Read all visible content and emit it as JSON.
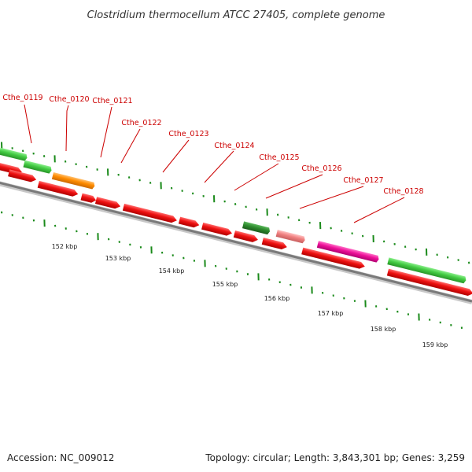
{
  "title": "Clostridium thermocellum ATCC 27405, complete genome",
  "footer": {
    "accession": "Accession: NC_009012",
    "summary": "Topology: circular; Length: 3,843,301 bp; Genes: 3,259"
  },
  "colors": {
    "gene_label": "#cc0000",
    "backbone": "#808080",
    "cds_red": "#ee1111",
    "cds_green": "#44cc44",
    "cds_orange": "#ff8c00",
    "cds_dark_green": "#2e8b2e",
    "cds_pink": "#f08080",
    "cds_magenta": "#ee1199",
    "tick": "#1a8a1a"
  },
  "gene_labels": [
    "Cthe_0119",
    "Cthe_0120",
    "Cthe_0121",
    "Cthe_0122",
    "Cthe_0123",
    "Cthe_0124",
    "Cthe_0125",
    "Cthe_0126",
    "Cthe_0127",
    "Cthe_0128"
  ],
  "scale_labels": [
    "152 kbp",
    "153 kbp",
    "154 kbp",
    "155 kbp",
    "156 kbp",
    "157 kbp",
    "158 kbp",
    "159 kbp"
  ]
}
